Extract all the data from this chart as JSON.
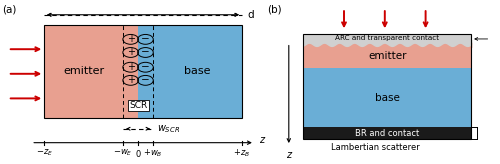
{
  "fig_width": 5.0,
  "fig_height": 1.64,
  "dpi": 100,
  "emitter_color": "#e8a090",
  "base_color": "#6aaed6",
  "arc_color": "#d0d0d0",
  "br_color": "#1a1a1a",
  "red_arrow_color": "#cc0000",
  "label_a": "(a)",
  "label_b": "(b)",
  "emitter_label": "emitter",
  "base_label": "base",
  "scr_label": "SCR",
  "arc_label": "ARC and transparent contact",
  "br_label": "BR and contact",
  "lambertian_label": "Lambertian scatterer",
  "d_label": "d",
  "zaxis_label": "z"
}
